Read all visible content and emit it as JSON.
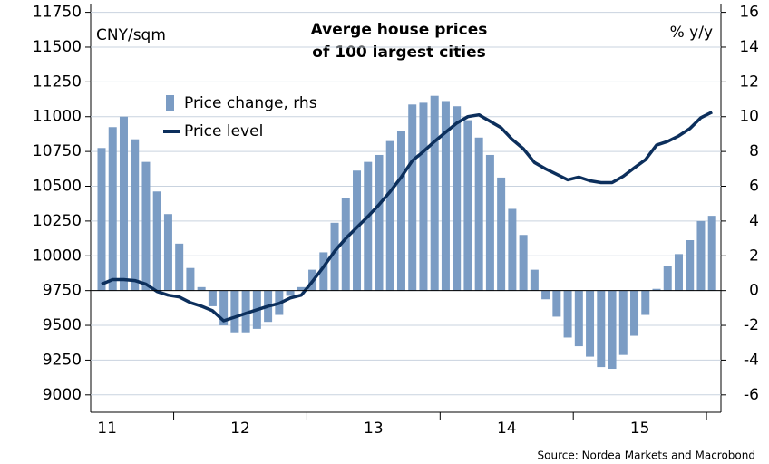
{
  "chart_data": {
    "type": "bar",
    "title": [
      "Averge house prices",
      "of 100 largest cities"
    ],
    "ylabel": "CNY/sqm",
    "y2label": "% y/y",
    "source": "Source: Nordea Markets and Macrobond",
    "xtick_labels": [
      "11",
      "12",
      "13",
      "14",
      "15"
    ],
    "categories": [
      null,
      null,
      null,
      null,
      null,
      null,
      null,
      null,
      null,
      null,
      null,
      null,
      null,
      null,
      null,
      null,
      null,
      null,
      null,
      null,
      null,
      null,
      null,
      null,
      null,
      null,
      null,
      null,
      null,
      null,
      null,
      null,
      null,
      null,
      null,
      null,
      null,
      null,
      null,
      null,
      null,
      null,
      null,
      null,
      null,
      null,
      null,
      null,
      null,
      null,
      null,
      null,
      null,
      null,
      null,
      null
    ],
    "ylim": [
      8875,
      11812.5
    ],
    "yticks": [
      9000,
      9250,
      9500,
      9750,
      10000,
      10250,
      10500,
      10750,
      11000,
      11250,
      11500,
      11750
    ],
    "y2lim": [
      -7,
      16.5
    ],
    "y2ticks": [
      -6,
      -4,
      -2,
      0,
      2,
      4,
      6,
      8,
      10,
      12,
      14,
      16
    ],
    "series": [
      {
        "name": "Price change, rhs",
        "type": "bar",
        "axis": "y2",
        "color": "#7b9cc4",
        "values": [
          8.2,
          9.4,
          10.0,
          8.7,
          7.4,
          5.7,
          4.4,
          2.7,
          1.3,
          0.2,
          -0.9,
          -2.0,
          -2.4,
          -2.4,
          -2.2,
          -1.8,
          -1.4,
          -0.3,
          0.2,
          1.2,
          2.2,
          3.9,
          5.3,
          6.9,
          7.4,
          7.8,
          8.6,
          9.2,
          10.7,
          10.8,
          11.2,
          10.9,
          10.6,
          9.8,
          8.8,
          7.8,
          6.5,
          4.7,
          3.2,
          1.2,
          -0.5,
          -1.5,
          -2.7,
          -3.2,
          -3.8,
          -4.4,
          -4.5,
          -3.7,
          -2.6,
          -1.4,
          0.1,
          1.4,
          2.1,
          2.9,
          4.0,
          4.3
        ]
      },
      {
        "name": "Price level",
        "type": "line",
        "color": "#0c2f5c",
        "values": [
          9796,
          9829,
          9829,
          9822,
          9796,
          9743,
          9717,
          9704,
          9664,
          9638,
          9605,
          9533,
          9559,
          9586,
          9612,
          9638,
          9658,
          9697,
          9717,
          9816,
          9921,
          10033,
          10125,
          10204,
          10283,
          10368,
          10461,
          10566,
          10684,
          10750,
          10822,
          10888,
          10954,
          11000,
          11013,
          10967,
          10921,
          10836,
          10770,
          10671,
          10625,
          10586,
          10546,
          10566,
          10539,
          10526,
          10526,
          10572,
          10632,
          10691,
          10796,
          10822,
          10862,
          10914,
          10993,
          11033
        ]
      }
    ]
  }
}
